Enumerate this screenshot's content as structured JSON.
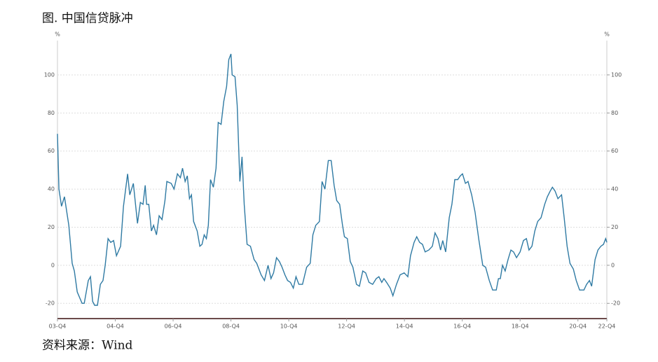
{
  "chart_data": {
    "type": "line",
    "title": "图. 中国信贷脉冲",
    "source": "资料来源：Wind",
    "y_unit": "%",
    "y2_unit": "%",
    "xlim": [
      0,
      228
    ],
    "xticks": [
      {
        "value": 0,
        "label": "03-Q4"
      },
      {
        "value": 24,
        "label": "04-Q4"
      },
      {
        "value": 48,
        "label": "06-Q4"
      },
      {
        "value": 72,
        "label": "08-Q4"
      },
      {
        "value": 96,
        "label": "10-Q4"
      },
      {
        "value": 120,
        "label": "12-Q4"
      },
      {
        "value": 144,
        "label": "14-Q4"
      },
      {
        "value": 168,
        "label": "16-Q4"
      },
      {
        "value": 192,
        "label": "18-Q4"
      },
      {
        "value": 216,
        "label": "20-Q4"
      },
      {
        "value": 228,
        "label": "22-Q4"
      }
    ],
    "ylim": [
      -28,
      118
    ],
    "yticks": [
      -20,
      0,
      20,
      40,
      60,
      80,
      100
    ],
    "y2lim": [
      -28,
      118
    ],
    "y2ticks": [
      -20,
      0,
      20,
      40,
      60,
      80,
      100
    ],
    "grid": true,
    "x": [
      0,
      0.6,
      1.7,
      2.9,
      4.7,
      6.1,
      7.0,
      8.2,
      10.2,
      11.1,
      12.8,
      13.7,
      14.6,
      15.4,
      16.6,
      17.8,
      18.9,
      19.8,
      21.0,
      22.1,
      23.3,
      24.5,
      26.2,
      27.4,
      29.1,
      30.0,
      31.5,
      33.2,
      34.4,
      35.5,
      36.4,
      37.0,
      37.9,
      39.0,
      39.9,
      41.1,
      42.2,
      43.4,
      44.6,
      45.4,
      47.2,
      48.4,
      49.8,
      51.0,
      51.9,
      53.0,
      53.9,
      54.8,
      55.6,
      56.5,
      58.0,
      59.1,
      60.0,
      60.9,
      61.8,
      62.6,
      63.5,
      64.7,
      65.8,
      66.7,
      67.9,
      69.0,
      70.2,
      71.1,
      72.0,
      72.5,
      73.7,
      74.6,
      75.7,
      76.6,
      77.5,
      78.7,
      80.1,
      81.6,
      82.7,
      84.5,
      85.9,
      87.4,
      88.6,
      89.7,
      90.9,
      92.1,
      93.2,
      94.4,
      95.5,
      96.7,
      97.9,
      99.0,
      100.2,
      101.7,
      103.4,
      104.9,
      106.0,
      107.2,
      108.7,
      109.8,
      111.0,
      112.4,
      113.6,
      114.8,
      115.9,
      117.1,
      118.3,
      119.1,
      120.3,
      121.5,
      122.6,
      124.1,
      125.3,
      126.7,
      127.9,
      129.3,
      130.8,
      132.3,
      133.4,
      134.6,
      135.5,
      136.6,
      138.1,
      139.2,
      140.7,
      142.2,
      143.9,
      145.4,
      146.5,
      148.0,
      149.1,
      150.3,
      151.5,
      152.6,
      154.1,
      155.6,
      156.7,
      157.9,
      159.0,
      159.9,
      161.1,
      162.6,
      163.7,
      164.9,
      166.1,
      167.2,
      168.1,
      169.3,
      170.4,
      171.9,
      173.3,
      174.8,
      176.5,
      177.7,
      179.2,
      180.6,
      182.1,
      183.0,
      183.8,
      184.7,
      185.8,
      187.0,
      188.2,
      189.3,
      190.5,
      192.0,
      193.4,
      194.6,
      195.7,
      196.9,
      198.1,
      199.3,
      200.7,
      202.2,
      203.3,
      204.5,
      205.4,
      206.5,
      207.7,
      209.2,
      210.3,
      211.5,
      212.7,
      214.1,
      215.3,
      216.7,
      218.5,
      219.6,
      220.8,
      221.7,
      223.1,
      224.3,
      225.5,
      226.6,
      227.5,
      228
    ],
    "series": [
      {
        "name": "中国信贷脉冲",
        "color": "#2f7aa3",
        "values": [
          69,
          40,
          31,
          36,
          21,
          1,
          -3,
          -14,
          -20,
          -20,
          -8,
          -6,
          -19,
          -21,
          -21,
          -10,
          -8,
          0,
          14,
          12,
          13,
          5,
          10,
          31,
          48,
          37,
          43,
          22,
          33,
          32,
          42,
          32,
          32,
          18,
          21,
          16,
          26,
          24,
          34,
          44,
          43,
          40,
          48,
          46,
          51,
          44,
          47,
          35,
          37,
          23,
          18,
          10,
          11,
          16,
          14,
          21,
          45,
          41,
          51,
          75,
          74,
          86,
          94,
          108,
          111,
          100,
          99,
          84,
          44,
          57,
          32,
          11,
          10,
          3,
          1,
          -5,
          -8,
          0,
          -7,
          -4,
          4,
          2,
          -1,
          -5,
          -8,
          -9,
          -12,
          -6,
          -10,
          -10,
          -1,
          1,
          16,
          21,
          23,
          44,
          40,
          55,
          55,
          42,
          34,
          32,
          21,
          15,
          14,
          2,
          -1,
          -10,
          -11,
          -3,
          -4,
          -9,
          -10,
          -7,
          -6,
          -9,
          -7,
          -9,
          -12,
          -16,
          -10,
          -5,
          -4,
          -6,
          5,
          12,
          15,
          12,
          11,
          7,
          8,
          10,
          17,
          14,
          8,
          13,
          7,
          25,
          32,
          45,
          45,
          47,
          48,
          43,
          44,
          37,
          28,
          14,
          0,
          -1,
          -8,
          -13,
          -13,
          -7,
          -7,
          0,
          -3,
          3,
          8,
          7,
          4,
          7,
          13,
          14,
          8,
          10,
          18,
          23,
          25,
          32,
          36,
          39,
          41,
          39,
          35,
          37,
          25,
          10,
          1,
          -2,
          -8,
          -13,
          -13,
          -10,
          -8,
          -11,
          3,
          8,
          10,
          11,
          14,
          12
        ]
      }
    ]
  }
}
